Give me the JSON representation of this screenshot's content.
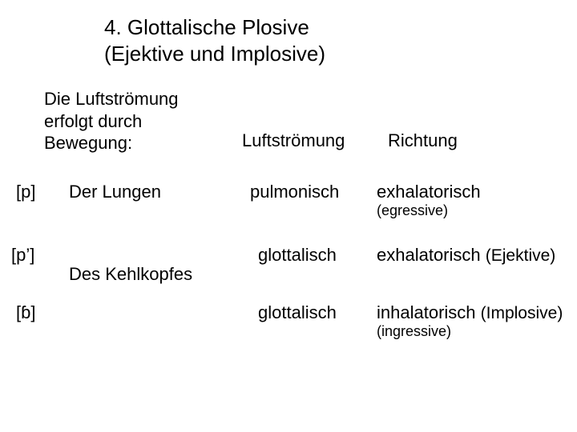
{
  "colors": {
    "background": "#ffffff",
    "text": "#000000"
  },
  "typography": {
    "font_family": "Arial",
    "title_fontsize_pt": 20,
    "body_fontsize_pt": 17,
    "small_fontsize_pt": 14
  },
  "title": {
    "line1": "4. Glottalische Plosive",
    "line2": "(Ejektive und Implosive)"
  },
  "intro": {
    "line1": "Die Luftströmung",
    "line2": "erfolgt durch",
    "line3": "Bewegung:"
  },
  "headers": {
    "airflow": "Luftströmung",
    "direction": "Richtung"
  },
  "rows": {
    "pulmonic": {
      "symbol": "[p]",
      "mechanism": "Der Lungen",
      "airflow": "pulmonisch",
      "direction": "exhalatorisch",
      "direction_sub": "(egressive)"
    },
    "ejective": {
      "symbol": "[p’]",
      "mechanism": "Des Kehlkopfes",
      "airflow": "glottalisch",
      "direction": "exhalatorisch",
      "direction_annot": "(Ejektive)"
    },
    "implosive": {
      "symbol": "[ɓ]",
      "airflow": "glottalisch",
      "direction": "inhalatorisch",
      "direction_annot": "(Implosive)",
      "direction_sub": "(ingressive)"
    }
  }
}
